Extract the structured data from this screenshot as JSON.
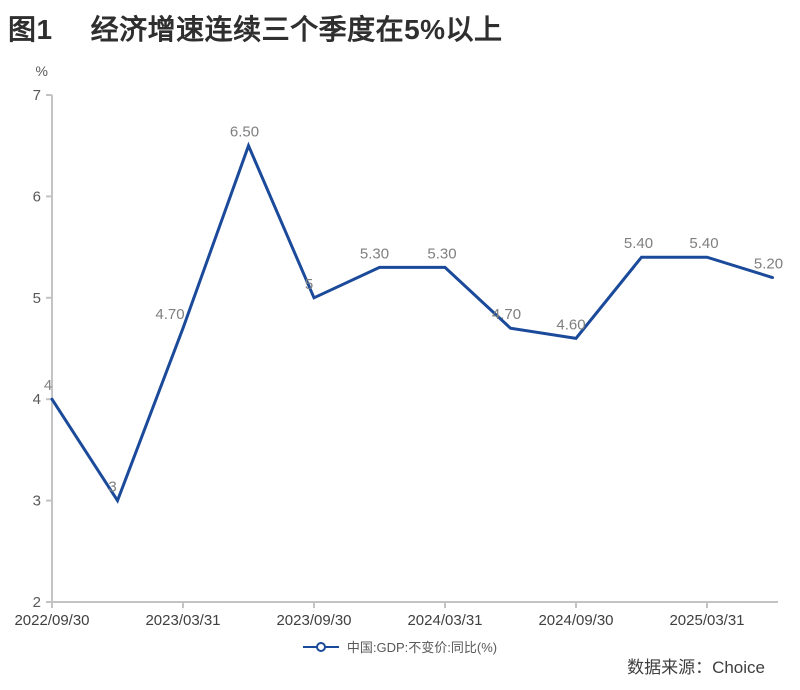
{
  "title": {
    "figure_label": "图1",
    "text": "经济增速连续三个季度在5%以上"
  },
  "legend": {
    "label": "中国:GDP:不变价:同比(%)",
    "marker": "line-with-hollow-circle-icon"
  },
  "source": "数据来源：Choice",
  "colors": {
    "line": "#1b4a9b",
    "axis": "#c3c3c3",
    "y_tick_label": "#595959",
    "x_tick_label": "#404040",
    "data_label": "#7f7f7f",
    "title": "#2f2f2f"
  },
  "chart_data": {
    "type": "line",
    "title": "图1 经济增速连续三个季度在5%以上",
    "x": [
      "2022/09/30",
      "2022/12/31",
      "2023/03/31",
      "2023/06/30",
      "2023/09/30",
      "2023/12/31",
      "2024/03/31",
      "2024/06/30",
      "2024/09/30",
      "2024/12/31",
      "2025/03/31",
      "2025/06/30"
    ],
    "values": [
      4,
      3,
      4.7,
      6.5,
      5,
      5.3,
      5.3,
      4.7,
      4.6,
      5.4,
      5.4,
      5.2
    ],
    "point_labels": [
      "4",
      "3",
      "4.70",
      "6.50",
      "5",
      "5.30",
      "5.30",
      "4.70",
      "4.60",
      "5.40",
      "5.40",
      "5.20"
    ],
    "x_tick_labels": [
      "2022/09/30",
      "2023/03/31",
      "2023/09/30",
      "2024/03/31",
      "2024/09/30",
      "2025/03/31"
    ],
    "y_ticks": [
      2,
      3,
      4,
      5,
      6,
      7
    ],
    "y_unit": "%",
    "ylim": [
      2,
      7
    ],
    "xlabel": "",
    "ylabel": "%",
    "grid": false,
    "legend_entries": [
      "中国:GDP:不变价:同比(%)"
    ],
    "legend_position": "bottom-center",
    "source": "数据来源：Choice"
  }
}
